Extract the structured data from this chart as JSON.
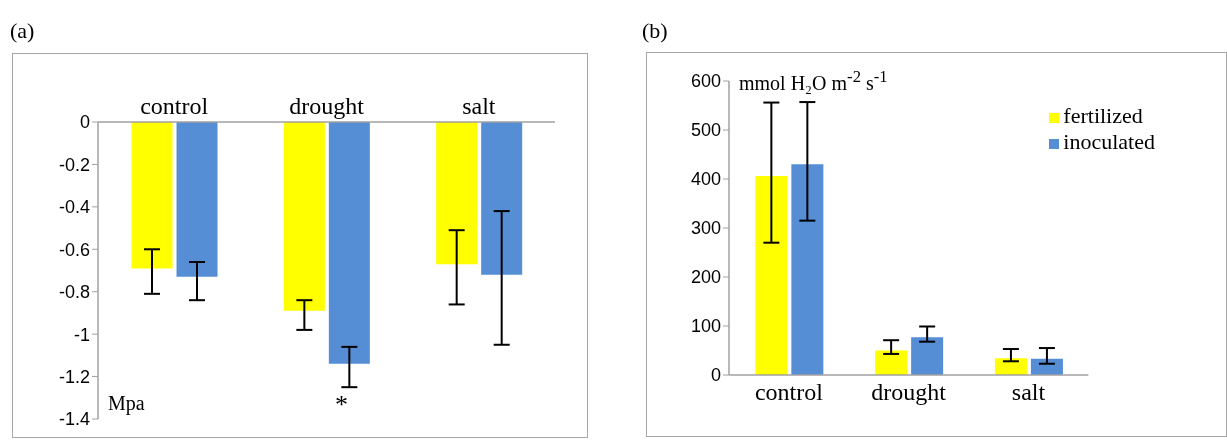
{
  "chart_data": [
    {
      "type": "bar",
      "title": "(a)",
      "ylabel": "Mpa",
      "categories": [
        "control",
        "drought",
        "salt"
      ],
      "series": [
        {
          "color": "#ffff00",
          "values": [
            -0.69,
            -0.89,
            -0.67
          ],
          "errors": [
            [
              -0.81,
              -0.6
            ],
            [
              -0.98,
              -0.84
            ],
            [
              -0.86,
              -0.51
            ]
          ]
        },
        {
          "color": "#558ed5",
          "values": [
            -0.73,
            -1.14,
            -0.72
          ],
          "errors": [
            [
              -0.84,
              -0.66
            ],
            [
              -1.25,
              -1.06
            ],
            [
              -1.05,
              -0.42
            ]
          ]
        }
      ],
      "ylim": [
        -1.4,
        0
      ],
      "yticks": [
        -1.4,
        -1.2,
        -1,
        -0.8,
        -0.6,
        -0.4,
        -0.2,
        0
      ],
      "grid": false,
      "legend": false,
      "annotations": [
        "*"
      ]
    },
    {
      "type": "bar",
      "title": "(b)",
      "ylabel": "mmol H₂O m$^{-2}$ s$^{-1}$",
      "categories": [
        "control",
        "drought",
        "salt"
      ],
      "series": [
        {
          "name": "fertilized",
          "color": "#ffff00",
          "values": [
            406,
            50,
            34
          ],
          "errors": [
            [
              270,
              556
            ],
            [
              43,
              71
            ],
            [
              28,
              53
            ]
          ]
        },
        {
          "name": "inoculated",
          "color": "#558ed5",
          "values": [
            430,
            77,
            33
          ],
          "errors": [
            [
              315,
              557
            ],
            [
              68,
              99
            ],
            [
              23,
              55
            ]
          ]
        }
      ],
      "ylim": [
        0,
        600
      ],
      "yticks": [
        0,
        100,
        200,
        300,
        400,
        500,
        600
      ],
      "grid": false,
      "legend": "top right"
    }
  ]
}
